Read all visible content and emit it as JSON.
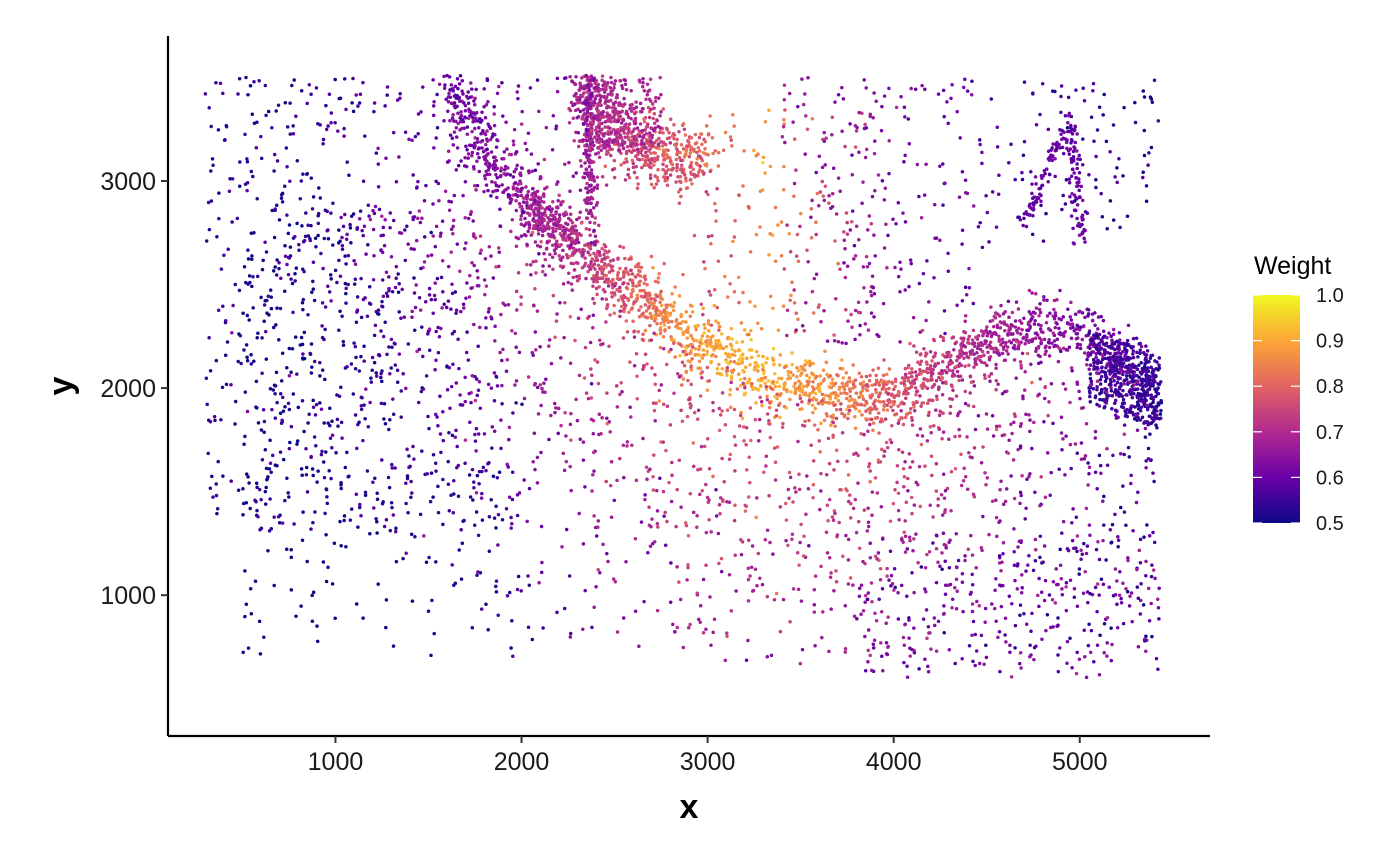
{
  "chart_data": {
    "type": "scatter",
    "xlabel": "x",
    "ylabel": "y",
    "xlim": [
      100,
      5700
    ],
    "ylim": [
      320,
      3700
    ],
    "x_ticks": [
      1000,
      2000,
      3000,
      4000,
      5000
    ],
    "y_ticks": [
      1000,
      2000,
      3000
    ],
    "grid": false,
    "legend": {
      "title": "Weight",
      "placement": "right",
      "min": 0.5,
      "max": 1.0,
      "ticks": [
        0.5,
        0.6,
        0.7,
        0.8,
        0.9,
        1.0
      ],
      "palette": "plasma",
      "colors": [
        "#0d0887",
        "#6a00a8",
        "#b12a90",
        "#e16462",
        "#fca636",
        "#f0f921"
      ]
    },
    "point_color_by": "Weight",
    "point_count_approx": 6000,
    "structures": [
      {
        "name": "arc",
        "points": [
          [
            2000,
            2900
          ],
          [
            2500,
            2550
          ],
          [
            2900,
            2250
          ],
          [
            3300,
            2050
          ],
          [
            3700,
            1980
          ],
          [
            4000,
            1960
          ],
          [
            4300,
            2130
          ],
          [
            4700,
            2280
          ],
          [
            5000,
            2270
          ],
          [
            5300,
            2100
          ],
          [
            5430,
            1950
          ]
        ],
        "weights": [
          0.66,
          0.76,
          0.88,
          0.91,
          0.85,
          0.78,
          0.72,
          0.66,
          0.63,
          0.58,
          0.52
        ]
      },
      {
        "name": "upper_band",
        "points": [
          [
            2350,
            3500
          ],
          [
            2400,
            3250
          ],
          [
            2750,
            3130
          ],
          [
            2980,
            3100
          ]
        ],
        "weights": [
          0.68,
          0.71,
          0.78,
          0.81
        ]
      },
      {
        "name": "vertical_streak",
        "points": [
          [
            2350,
            3500
          ],
          [
            2360,
            3250
          ],
          [
            2370,
            2800
          ]
        ],
        "weights": [
          0.64,
          0.66,
          0.68
        ]
      },
      {
        "name": "left_diagonal",
        "points": [
          [
            1580,
            3500
          ],
          [
            1800,
            3150
          ],
          [
            2050,
            2850
          ],
          [
            2300,
            2700
          ]
        ],
        "weights": [
          0.6,
          0.63,
          0.67,
          0.7
        ]
      },
      {
        "name": "x_shape",
        "points": [
          [
            4700,
            2800
          ],
          [
            4950,
            3300
          ],
          [
            5000,
            2700
          ]
        ],
        "weights": [
          0.6,
          0.6,
          0.6
        ]
      }
    ]
  }
}
